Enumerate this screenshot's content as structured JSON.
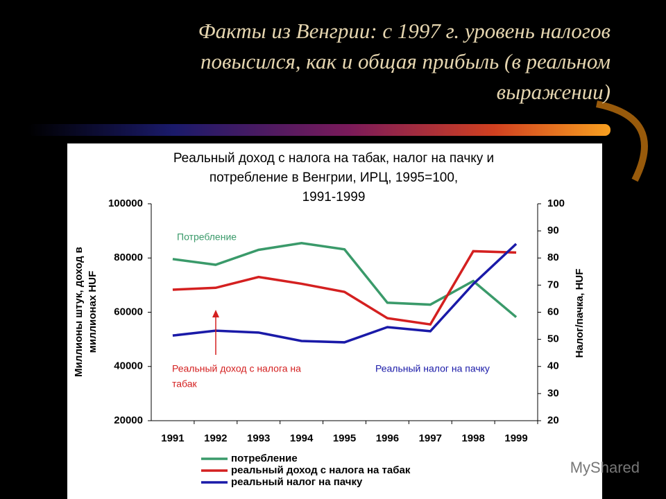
{
  "header": [
    "Факты из Венгрии: с 1997 г. уровень налогов",
    "повысился, как и общая прибыль (в реальном",
    "выражении)"
  ],
  "watermark": "MyShared",
  "chart_data": {
    "type": "line",
    "title": [
      "Реальный доход с налога на табак, налог на пачку и",
      "потребление в Венгрии, ИРЦ, 1995=100,",
      "1991-1999"
    ],
    "ylabel": [
      "Миллионы штук, доход в",
      "миллионах HUF"
    ],
    "y2label": "Налог/пачка, HUF",
    "categories": [
      "1991",
      "1992",
      "1993",
      "1994",
      "1995",
      "1996",
      "1997",
      "1998",
      "1999"
    ],
    "series": [
      {
        "name": "потребление",
        "color": "#3a9a6a",
        "values": [
          79600,
          77500,
          83000,
          85500,
          83200,
          63500,
          62800,
          71500,
          58200
        ]
      },
      {
        "name": "реальный доход с налога на табак",
        "color": "#d42020",
        "values": [
          68300,
          69000,
          73000,
          70500,
          67500,
          57800,
          55500,
          82500,
          82000
        ]
      },
      {
        "name": "реальный налог на пачку",
        "color": "#1a1aa8",
        "axis": "y2",
        "values": [
          51.4,
          53.2,
          52.5,
          49.4,
          48.9,
          54.5,
          53,
          70.4,
          85.2
        ]
      }
    ],
    "annotations": [
      [
        "Потребление"
      ],
      [
        "Реальный доход с налога на",
        "табак"
      ],
      [
        "Реальный налог на пачку"
      ]
    ],
    "ylim": [
      20000,
      100000
    ],
    "yticks": [
      20000,
      40000,
      60000,
      80000,
      100000
    ],
    "y2lim": [
      20,
      100
    ],
    "y2ticks": [
      20,
      30,
      40,
      50,
      60,
      70,
      80,
      90,
      100
    ]
  }
}
